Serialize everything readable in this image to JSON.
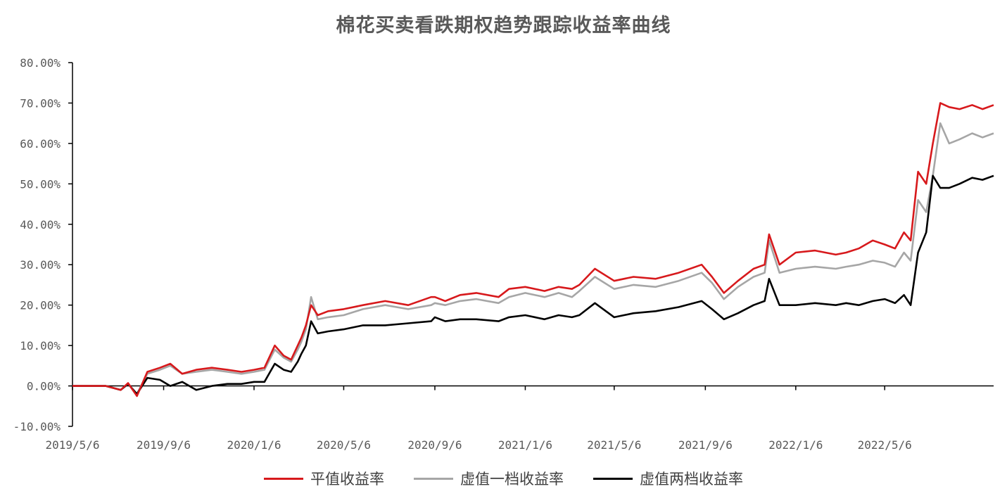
{
  "chart_data": {
    "type": "line",
    "title": "棉花买卖看跌期权趋势跟踪收益率曲线",
    "xlabel": "",
    "ylabel": "",
    "ylim": [
      -0.1,
      0.8
    ],
    "y_ticks": [
      "80.00%",
      "70.00%",
      "60.00%",
      "50.00%",
      "40.00%",
      "30.00%",
      "20.00%",
      "10.00%",
      "0.00%",
      "-10.00%"
    ],
    "y_tick_values": [
      0.8,
      0.7,
      0.6,
      0.5,
      0.4,
      0.3,
      0.2,
      0.1,
      0.0,
      -0.1
    ],
    "x_ticks": [
      "2019/5/6",
      "2019/9/6",
      "2020/1/6",
      "2020/5/6",
      "2020/9/6",
      "2021/1/6",
      "2021/5/6",
      "2021/9/6",
      "2022/1/6",
      "2022/5/6"
    ],
    "x_range": [
      "2019/5/6",
      "2022/9/30"
    ],
    "grid": false,
    "legend_position": "bottom",
    "series": [
      {
        "name": "平值收益率",
        "color": "#d7191c",
        "x": [
          "2019/5/6",
          "2019/6/1",
          "2019/6/20",
          "2019/7/10",
          "2019/7/20",
          "2019/8/1",
          "2019/8/15",
          "2019/9/1",
          "2019/9/15",
          "2019/10/1",
          "2019/10/20",
          "2019/11/10",
          "2019/12/1",
          "2019/12/20",
          "2020/1/6",
          "2020/1/20",
          "2020/2/3",
          "2020/2/15",
          "2020/2/25",
          "2020/3/5",
          "2020/3/10",
          "2020/3/16",
          "2020/3/23",
          "2020/4/1",
          "2020/4/15",
          "2020/5/6",
          "2020/6/1",
          "2020/7/1",
          "2020/8/1",
          "2020/9/1",
          "2020/9/6",
          "2020/9/20",
          "2020/10/10",
          "2020/11/1",
          "2020/12/1",
          "2020/12/15",
          "2021/1/6",
          "2021/2/1",
          "2021/2/20",
          "2021/3/10",
          "2021/3/20",
          "2021/4/10",
          "2021/5/6",
          "2021/6/1",
          "2021/7/1",
          "2021/8/1",
          "2021/9/1",
          "2021/9/15",
          "2021/10/1",
          "2021/10/20",
          "2021/11/10",
          "2021/11/25",
          "2021/12/1",
          "2021/12/15",
          "2022/1/6",
          "2022/2/1",
          "2022/3/1",
          "2022/3/15",
          "2022/4/1",
          "2022/4/20",
          "2022/5/6",
          "2022/5/20",
          "2022/6/1",
          "2022/6/10",
          "2022/6/20",
          "2022/7/1",
          "2022/7/10",
          "2022/7/20",
          "2022/8/1",
          "2022/8/15",
          "2022/9/1",
          "2022/9/15",
          "2022/9/30"
        ],
        "values": [
          0.0,
          0.0,
          0.0,
          -0.01,
          0.007,
          -0.025,
          0.035,
          0.045,
          0.055,
          0.03,
          0.04,
          0.045,
          0.04,
          0.035,
          0.04,
          0.045,
          0.1,
          0.075,
          0.065,
          0.1,
          0.12,
          0.15,
          0.2,
          0.175,
          0.185,
          0.19,
          0.2,
          0.21,
          0.2,
          0.22,
          0.22,
          0.21,
          0.225,
          0.23,
          0.22,
          0.24,
          0.245,
          0.235,
          0.245,
          0.24,
          0.25,
          0.29,
          0.26,
          0.27,
          0.265,
          0.28,
          0.3,
          0.27,
          0.23,
          0.26,
          0.29,
          0.3,
          0.375,
          0.3,
          0.33,
          0.335,
          0.325,
          0.33,
          0.34,
          0.36,
          0.35,
          0.34,
          0.38,
          0.36,
          0.53,
          0.5,
          0.6,
          0.7,
          0.69,
          0.685,
          0.695,
          0.685,
          0.695
        ]
      },
      {
        "name": "虚值一档收益率",
        "color": "#a6a6a6",
        "x": [
          "2019/5/6",
          "2019/6/1",
          "2019/6/20",
          "2019/7/10",
          "2019/7/20",
          "2019/8/1",
          "2019/8/15",
          "2019/9/1",
          "2019/9/15",
          "2019/10/1",
          "2019/10/20",
          "2019/11/10",
          "2019/12/1",
          "2019/12/20",
          "2020/1/6",
          "2020/1/20",
          "2020/2/3",
          "2020/2/15",
          "2020/2/25",
          "2020/3/5",
          "2020/3/10",
          "2020/3/16",
          "2020/3/23",
          "2020/4/1",
          "2020/4/15",
          "2020/5/6",
          "2020/6/1",
          "2020/7/1",
          "2020/8/1",
          "2020/9/1",
          "2020/9/6",
          "2020/9/20",
          "2020/10/10",
          "2020/11/1",
          "2020/12/1",
          "2020/12/15",
          "2021/1/6",
          "2021/2/1",
          "2021/2/20",
          "2021/3/10",
          "2021/3/20",
          "2021/4/10",
          "2021/5/6",
          "2021/6/1",
          "2021/7/1",
          "2021/8/1",
          "2021/9/1",
          "2021/9/15",
          "2021/10/1",
          "2021/10/20",
          "2021/11/10",
          "2021/11/25",
          "2021/12/1",
          "2021/12/15",
          "2022/1/6",
          "2022/2/1",
          "2022/3/1",
          "2022/3/15",
          "2022/4/1",
          "2022/4/20",
          "2022/5/6",
          "2022/5/20",
          "2022/6/1",
          "2022/6/10",
          "2022/6/20",
          "2022/7/1",
          "2022/7/10",
          "2022/7/20",
          "2022/8/1",
          "2022/8/15",
          "2022/9/1",
          "2022/9/15",
          "2022/9/30"
        ],
        "values": [
          0.0,
          0.0,
          0.0,
          -0.01,
          0.005,
          -0.02,
          0.03,
          0.04,
          0.05,
          0.03,
          0.035,
          0.04,
          0.035,
          0.03,
          0.035,
          0.04,
          0.09,
          0.07,
          0.06,
          0.09,
          0.11,
          0.14,
          0.22,
          0.165,
          0.17,
          0.175,
          0.19,
          0.2,
          0.19,
          0.2,
          0.205,
          0.2,
          0.21,
          0.215,
          0.205,
          0.22,
          0.23,
          0.22,
          0.23,
          0.22,
          0.235,
          0.27,
          0.24,
          0.25,
          0.245,
          0.26,
          0.28,
          0.255,
          0.215,
          0.245,
          0.27,
          0.28,
          0.36,
          0.28,
          0.29,
          0.295,
          0.29,
          0.295,
          0.3,
          0.31,
          0.305,
          0.295,
          0.33,
          0.31,
          0.46,
          0.43,
          0.52,
          0.65,
          0.6,
          0.61,
          0.625,
          0.615,
          0.625
        ]
      },
      {
        "name": "虚值两档收益率",
        "color": "#000000",
        "x": [
          "2019/5/6",
          "2019/6/1",
          "2019/6/20",
          "2019/7/10",
          "2019/7/20",
          "2019/8/1",
          "2019/8/15",
          "2019/9/1",
          "2019/9/15",
          "2019/10/1",
          "2019/10/20",
          "2019/11/10",
          "2019/12/1",
          "2019/12/20",
          "2020/1/6",
          "2020/1/20",
          "2020/2/3",
          "2020/2/15",
          "2020/2/25",
          "2020/3/5",
          "2020/3/10",
          "2020/3/16",
          "2020/3/23",
          "2020/4/1",
          "2020/4/15",
          "2020/5/6",
          "2020/6/1",
          "2020/7/1",
          "2020/8/1",
          "2020/9/1",
          "2020/9/6",
          "2020/9/20",
          "2020/10/10",
          "2020/11/1",
          "2020/12/1",
          "2020/12/15",
          "2021/1/6",
          "2021/2/1",
          "2021/2/20",
          "2021/3/10",
          "2021/3/20",
          "2021/4/10",
          "2021/5/6",
          "2021/6/1",
          "2021/7/1",
          "2021/8/1",
          "2021/9/1",
          "2021/9/15",
          "2021/10/1",
          "2021/10/20",
          "2021/11/10",
          "2021/11/25",
          "2021/12/1",
          "2021/12/15",
          "2022/1/6",
          "2022/2/1",
          "2022/3/1",
          "2022/3/15",
          "2022/4/1",
          "2022/4/20",
          "2022/5/6",
          "2022/5/20",
          "2022/6/1",
          "2022/6/10",
          "2022/6/20",
          "2022/7/1",
          "2022/7/10",
          "2022/7/20",
          "2022/8/1",
          "2022/8/15",
          "2022/9/1",
          "2022/9/15",
          "2022/9/30"
        ],
        "values": [
          0.0,
          0.0,
          0.0,
          -0.01,
          0.005,
          -0.02,
          0.02,
          0.015,
          0.0,
          0.01,
          -0.01,
          0.0,
          0.005,
          0.005,
          0.01,
          0.01,
          0.055,
          0.04,
          0.035,
          0.06,
          0.08,
          0.1,
          0.16,
          0.13,
          0.135,
          0.14,
          0.15,
          0.15,
          0.155,
          0.16,
          0.17,
          0.16,
          0.165,
          0.165,
          0.16,
          0.17,
          0.175,
          0.165,
          0.175,
          0.17,
          0.175,
          0.205,
          0.17,
          0.18,
          0.185,
          0.195,
          0.21,
          0.19,
          0.165,
          0.18,
          0.2,
          0.21,
          0.265,
          0.2,
          0.2,
          0.205,
          0.2,
          0.205,
          0.2,
          0.21,
          0.215,
          0.205,
          0.225,
          0.2,
          0.33,
          0.38,
          0.52,
          0.49,
          0.49,
          0.5,
          0.515,
          0.51,
          0.52
        ]
      }
    ]
  }
}
